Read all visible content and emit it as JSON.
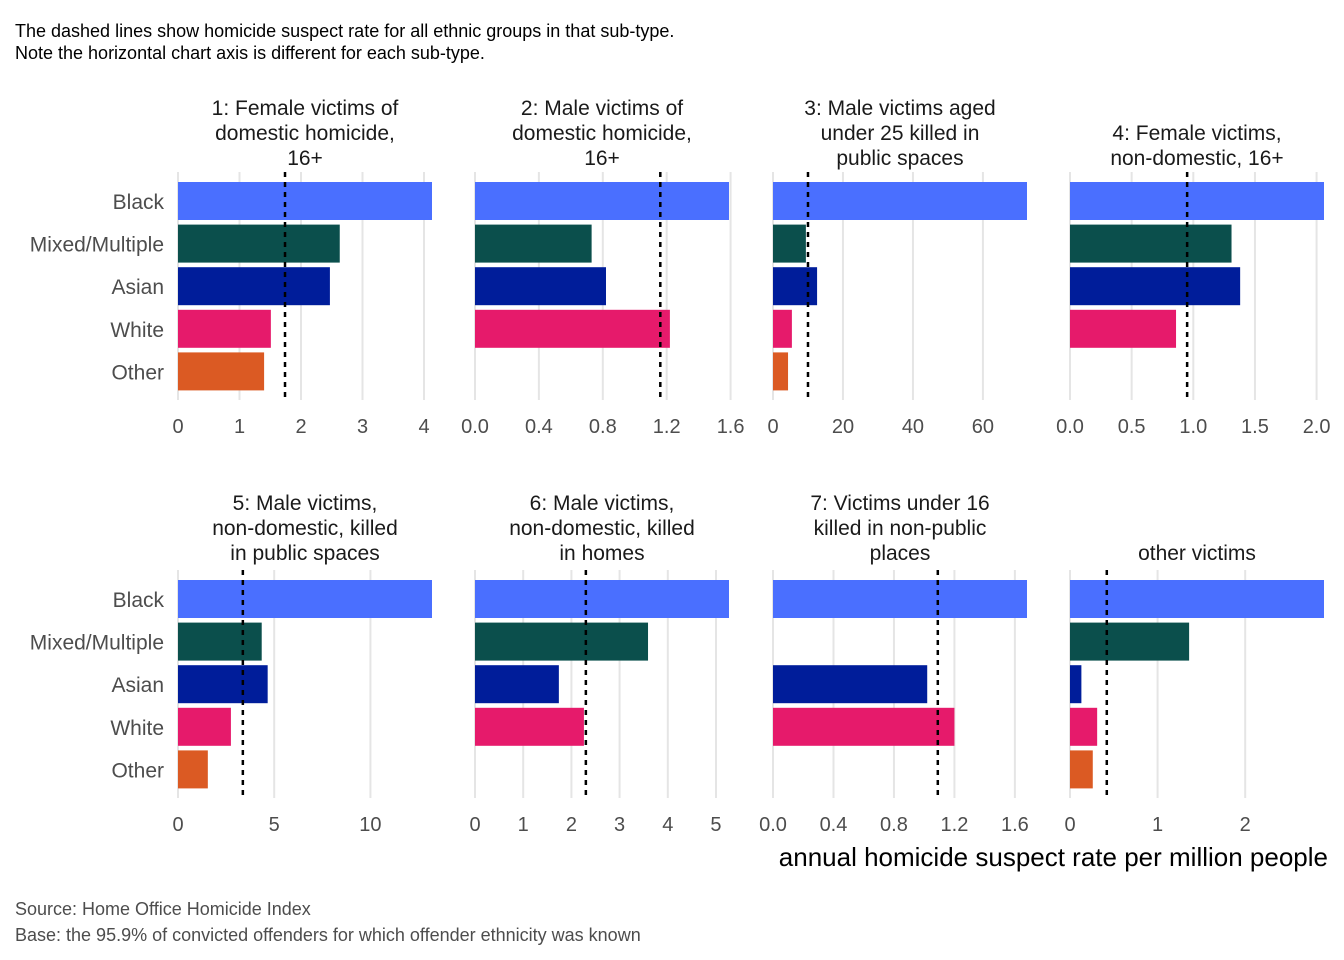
{
  "subtitle_lines": [
    "The dashed lines show homicide suspect rate for all ethnic groups in that sub-type.",
    "Note the horizontal chart axis is different for each sub-type."
  ],
  "xlabel": "annual homicide suspect rate per million people",
  "caption_lines": [
    "Source: Home Office Homicide Index",
    "Base: the 95.9% of convicted offenders for which offender ethnicity was known"
  ],
  "chart_data": {
    "type": "bar",
    "orientation": "horizontal",
    "facets": 8,
    "grid": "vertical",
    "categories": [
      "Black",
      "Mixed/Multiple",
      "Asian",
      "White",
      "Other"
    ],
    "colors": [
      "#4a6fff",
      "#0b4f4c",
      "#001d9a",
      "#e61a6b",
      "#db5a23"
    ],
    "panels": [
      {
        "title": [
          "1: Female victims of",
          "domestic homicide,",
          "16+"
        ],
        "xlim": [
          0,
          4.13
        ],
        "ticks": [
          "0",
          "1",
          "2",
          "3",
          "4"
        ],
        "tick_values": [
          0,
          1,
          2,
          3,
          4
        ],
        "values": [
          4.13,
          2.63,
          2.47,
          1.51,
          1.4
        ],
        "all_groups": 1.74
      },
      {
        "title": [
          "2: Male victims of",
          "domestic homicide,",
          "16+"
        ],
        "xlim": [
          0,
          1.59
        ],
        "ticks": [
          "0.0",
          "0.4",
          "0.8",
          "1.2",
          "1.6"
        ],
        "tick_values": [
          0,
          0.4,
          0.8,
          1.2,
          1.6
        ],
        "values": [
          1.59,
          0.73,
          0.82,
          1.22,
          0
        ],
        "all_groups": 1.16
      },
      {
        "title": [
          "3: Male victims aged",
          "under 25 killed in",
          "public spaces"
        ],
        "xlim": [
          0,
          72.6
        ],
        "ticks": [
          "0",
          "20",
          "40",
          "60"
        ],
        "tick_values": [
          0,
          20,
          40,
          60
        ],
        "values": [
          72.6,
          9.4,
          12.6,
          5.4,
          4.3
        ],
        "all_groups": 10
      },
      {
        "title": [
          "4: Female victims,",
          "non-domestic, 16+"
        ],
        "xlim": [
          0,
          2.06
        ],
        "ticks": [
          "0.0",
          "0.5",
          "1.0",
          "1.5",
          "2.0"
        ],
        "tick_values": [
          0,
          0.5,
          1,
          1.5,
          2
        ],
        "values": [
          2.06,
          1.31,
          1.38,
          0.86,
          0
        ],
        "all_groups": 0.95
      },
      {
        "title": [
          "5: Male victims,",
          "non-domestic, killed",
          "in public spaces"
        ],
        "xlim": [
          0,
          13.2
        ],
        "ticks": [
          "0",
          "5",
          "10"
        ],
        "tick_values": [
          0,
          5,
          10
        ],
        "values": [
          13.2,
          4.35,
          4.66,
          2.75,
          1.55
        ],
        "all_groups": 3.37
      },
      {
        "title": [
          "6: Male victims,",
          "non-domestic, killed",
          "in homes"
        ],
        "xlim": [
          0,
          5.27
        ],
        "ticks": [
          "0",
          "1",
          "2",
          "3",
          "4",
          "5"
        ],
        "tick_values": [
          0,
          1,
          2,
          3,
          4,
          5
        ],
        "values": [
          5.27,
          3.59,
          1.74,
          2.26,
          0
        ],
        "all_groups": 2.3
      },
      {
        "title": [
          "7: Victims under 16",
          "killed in non-public",
          "places"
        ],
        "xlim": [
          0,
          1.68
        ],
        "ticks": [
          "0.0",
          "0.4",
          "0.8",
          "1.2",
          "1.6"
        ],
        "tick_values": [
          0,
          0.4,
          0.8,
          1.2,
          1.6
        ],
        "values": [
          1.68,
          0,
          1.02,
          1.2,
          0
        ],
        "all_groups": 1.09
      },
      {
        "title": [
          "other victims"
        ],
        "xlim": [
          0,
          2.9
        ],
        "ticks": [
          "0",
          "1",
          "2"
        ],
        "tick_values": [
          0,
          1,
          2
        ],
        "values": [
          2.9,
          1.36,
          0.13,
          0.31,
          0.26
        ],
        "all_groups": 0.42
      }
    ]
  }
}
